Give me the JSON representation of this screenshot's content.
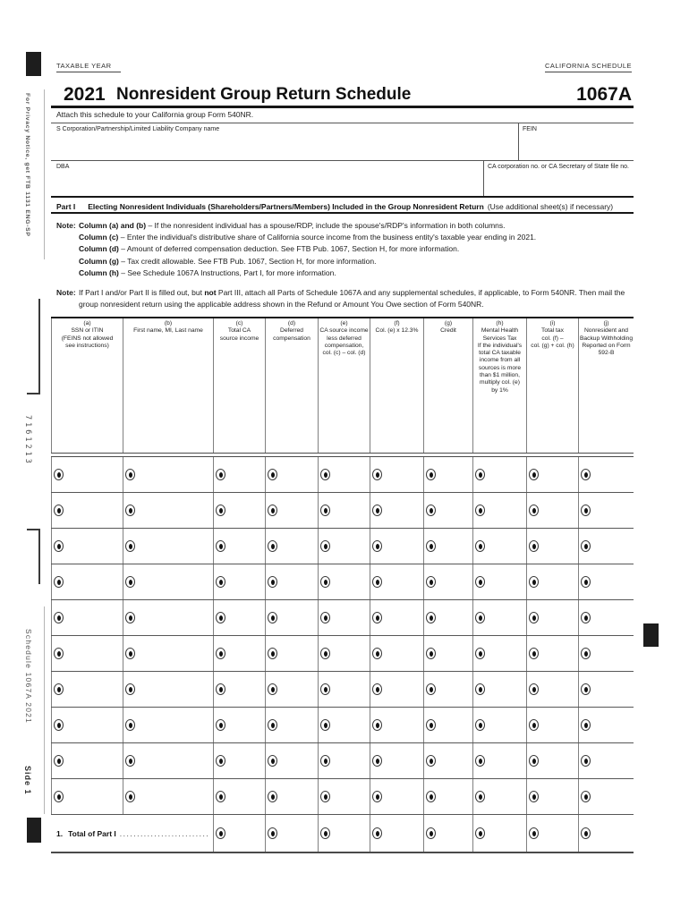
{
  "colors": {
    "ink": "#1c1c1c",
    "rule_dark": "#161616",
    "rule_gray": "#565656"
  },
  "header": {
    "taxable_year_label": "TAXABLE YEAR",
    "california_schedule_label": "CALIFORNIA SCHEDULE",
    "year": "2021",
    "title": "Nonresident Group Return Schedule",
    "schedule_number": "1067A",
    "attach_line": "Attach this schedule to your California group Form 540NR."
  },
  "entity_fields": {
    "name_label": "S Corporation/Partnership/Limited Liability Company name",
    "fein_label": "FEIN",
    "dba_label": "DBA",
    "ca_corp_label": "CA corporation no. or CA Secretary of State file no."
  },
  "part1": {
    "part_label": "Part I",
    "part_title": "Electing Nonresident Individuals (Shareholders/Partners/Members) Included in the Group Nonresident Return",
    "part_title_suffix": "(Use additional sheet(s) if necessary)",
    "note1_label": "Note:",
    "note1_items": [
      {
        "bold": "Column (a) and (b)",
        "text": "– If the nonresident individual has a spouse/RDP, include the spouse's/RDP's information in both columns."
      },
      {
        "bold": "Column (c)",
        "text": "– Enter the individual's distributive share of California source income from the business entity's taxable year ending in 2021."
      },
      {
        "bold": "Column (d)",
        "text": "– Amount of deferred compensation deduction. See FTB Pub. 1067, Section H, for more information."
      },
      {
        "bold": "Column (g)",
        "text": "– Tax credit allowable. See FTB Pub. 1067, Section H, for more information."
      },
      {
        "bold": "Column (h)",
        "text": "– See Schedule 1067A Instructions, Part I, for more information."
      }
    ],
    "note2_label": "Note:",
    "note2_pre": "If Part I and/or Part II is filled out, but ",
    "note2_bold": "not",
    "note2_post": " Part III, attach all Parts of Schedule 1067A and any supplemental schedules, if applicable, to Form 540NR. Then mail the group nonresident return using the applicable address shown in the Refund or Amount You Owe section of Form 540NR."
  },
  "table": {
    "columns": [
      {
        "key": "a",
        "header": "(a)\nSSN or ITIN\n(FEINS not allowed\nsee instructions)"
      },
      {
        "key": "b",
        "header": "(b)\nFirst name, MI, Last name"
      },
      {
        "key": "c",
        "header": "(c)\nTotal CA\nsource income"
      },
      {
        "key": "d",
        "header": "(d)\nDeferred\ncompensation"
      },
      {
        "key": "e",
        "header": "(e)\nCA source income\nless deferred\ncompensation,\ncol. (c) – col. (d)"
      },
      {
        "key": "f",
        "header": "(f)\nCol. (e) x 12.3%"
      },
      {
        "key": "g",
        "header": "(g)\nCredit"
      },
      {
        "key": "h",
        "header": "(h)\nMental Health\nServices Tax\nIf the individual's\ntotal CA taxable\nincome from all\nsources is more\nthan $1 million,\nmultiply col. (e)\nby 1%"
      },
      {
        "key": "i",
        "header": "(i)\nTotal tax\ncol. (f) –\ncol. (g) + col. (h)"
      },
      {
        "key": "j",
        "header": "(j)\nNonresident and\nBackup Withholding\nReported on Form\n592-B"
      }
    ],
    "data_row_count": 10,
    "total_row": {
      "number": "1.",
      "label": "Total of Part I",
      "leaders": "..........................",
      "bullseye_columns": [
        "c",
        "d",
        "e",
        "f",
        "g",
        "h",
        "i",
        "j"
      ]
    }
  },
  "sidebar": {
    "privacy_notice": "For Privacy Notice, get FTB 1131 ENG-SP",
    "serial_number": "7161213",
    "schedule_footer": "Schedule 1067A 2021",
    "side_label": "Side 1"
  }
}
